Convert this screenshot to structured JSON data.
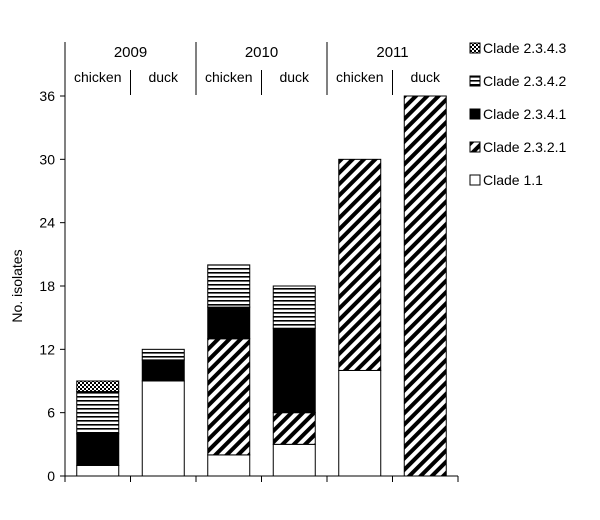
{
  "chart_data": {
    "type": "bar",
    "stacked": true,
    "ylabel": "No. isolates",
    "ylim": [
      0,
      36
    ],
    "yticks": [
      0,
      6,
      12,
      18,
      24,
      30,
      36
    ],
    "years": [
      {
        "label": "2009",
        "categories": [
          "chicken",
          "duck"
        ]
      },
      {
        "label": "2010",
        "categories": [
          "chicken",
          "duck"
        ]
      },
      {
        "label": "2011",
        "categories": [
          "chicken",
          "duck"
        ]
      }
    ],
    "categories": [
      "2009 chicken",
      "2009 duck",
      "2010 chicken",
      "2010 duck",
      "2011 chicken",
      "2011 duck"
    ],
    "series": [
      {
        "name": "Clade 1.1",
        "pattern": "white",
        "values": [
          1,
          9,
          2,
          3,
          10,
          0
        ]
      },
      {
        "name": "Clade 2.3.2.1",
        "pattern": "diagonal",
        "values": [
          0,
          0,
          11,
          3,
          20,
          36
        ]
      },
      {
        "name": "Clade 2.3.4.1",
        "pattern": "black",
        "values": [
          3,
          2,
          3,
          8,
          0,
          0
        ]
      },
      {
        "name": "Clade 2.3.4.2",
        "pattern": "horizontal",
        "values": [
          4,
          1,
          4,
          4,
          0,
          0
        ]
      },
      {
        "name": "Clade 2.3.4.3",
        "pattern": "checker",
        "values": [
          1,
          0,
          0,
          0,
          0,
          0
        ]
      }
    ],
    "legend_order": [
      "Clade 2.3.4.3",
      "Clade 2.3.4.2",
      "Clade 2.3.4.1",
      "Clade 2.3.2.1",
      "Clade 1.1"
    ],
    "legend_position": "right",
    "grid": false
  }
}
